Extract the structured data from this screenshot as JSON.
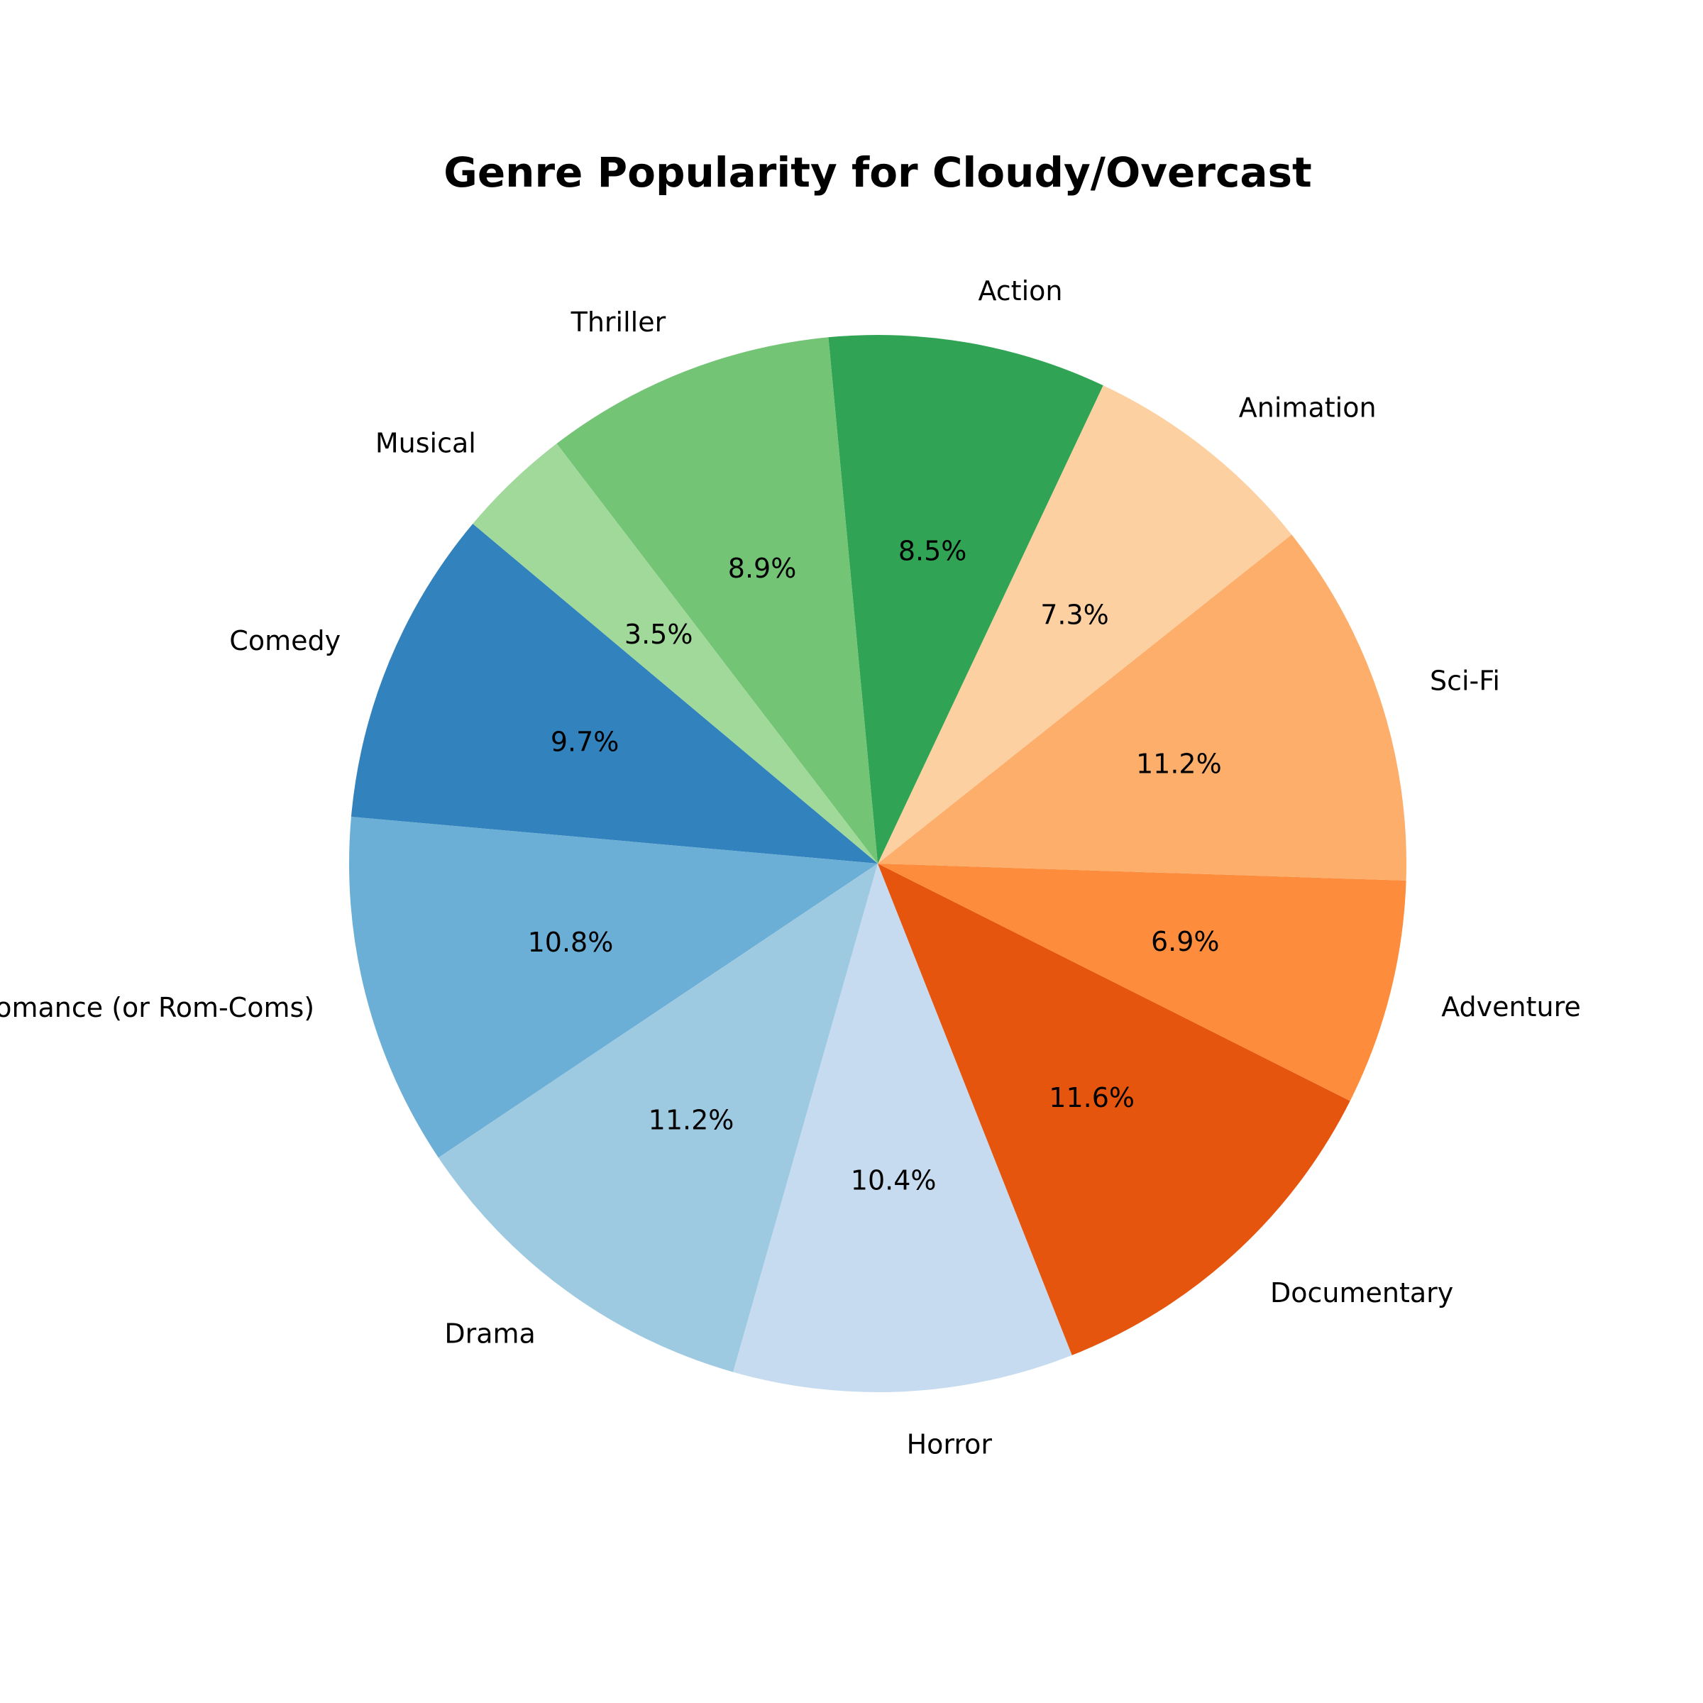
{
  "chart_data": {
    "type": "pie",
    "title": "Genre Popularity for Cloudy/Overcast",
    "start_angle_deg": 140,
    "direction": "counterclockwise",
    "slices": [
      {
        "label": "Comedy",
        "value": 9.7,
        "pct_label": "9.7%",
        "color": "#3182bd"
      },
      {
        "label": "Romance (or Rom-Coms)",
        "value": 10.8,
        "pct_label": "10.8%",
        "color": "#6baed6"
      },
      {
        "label": "Drama",
        "value": 11.2,
        "pct_label": "11.2%",
        "color": "#9ecae1"
      },
      {
        "label": "Horror",
        "value": 10.4,
        "pct_label": "10.4%",
        "color": "#c6dbef"
      },
      {
        "label": "Documentary",
        "value": 11.6,
        "pct_label": "11.6%",
        "color": "#e6550d"
      },
      {
        "label": "Adventure",
        "value": 6.9,
        "pct_label": "6.9%",
        "color": "#fd8d3c"
      },
      {
        "label": "Sci-Fi",
        "value": 11.2,
        "pct_label": "11.2%",
        "color": "#fdae6b"
      },
      {
        "label": "Animation",
        "value": 7.3,
        "pct_label": "7.3%",
        "color": "#fdd0a2"
      },
      {
        "label": "Action",
        "value": 8.5,
        "pct_label": "8.5%",
        "color": "#31a354"
      },
      {
        "label": "Thriller",
        "value": 8.9,
        "pct_label": "8.9%",
        "color": "#74c476"
      },
      {
        "label": "Musical",
        "value": 3.5,
        "pct_label": "3.5%",
        "color": "#a1d99b"
      }
    ]
  }
}
